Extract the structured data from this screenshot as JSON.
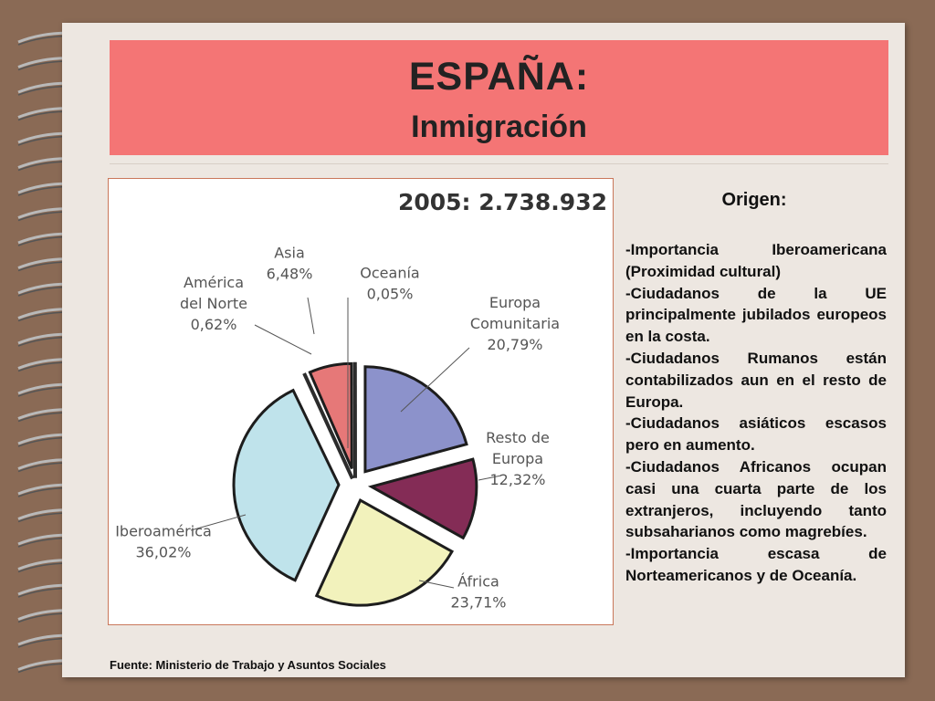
{
  "slide": {
    "title": "ESPAÑA:",
    "subtitle": "Inmigración",
    "source": "Fuente: Ministerio de Trabajo y Asuntos Sociales"
  },
  "origin": {
    "heading": "Origen:",
    "bullets": [
      "-Importancia Iberoamericana (Proximidad cultural)",
      "-Ciudadanos de la UE principalmente jubilados europeos en la costa.",
      "-Ciudadanos Rumanos están contabilizados aun en el resto de Europa.",
      "-Ciudadanos asiáticos escasos pero en aumento.",
      "-Ciudadanos Africanos ocupan casi una cuarta parte de los extranjeros, incluyendo tanto subsaharianos como magrebíes.",
      "-Importancia escasa de Norteamericanos y de Oceanía."
    ]
  },
  "chart_data": {
    "type": "pie",
    "title": "2005: 2.738.932",
    "legend": "none",
    "slices": [
      {
        "name": "Europa Comunitaria",
        "label_lines": [
          "Europa",
          "Comunitaria"
        ],
        "percent_label": "20,79%",
        "value": 20.79,
        "color": "#8c92cb",
        "exploded": true
      },
      {
        "name": "Resto de Europa",
        "label_lines": [
          "Resto de",
          "Europa"
        ],
        "percent_label": "12,32%",
        "value": 12.32,
        "color": "#842c56",
        "exploded": true
      },
      {
        "name": "África",
        "label_lines": [
          "África"
        ],
        "percent_label": "23,71%",
        "value": 23.71,
        "color": "#f2f2bc",
        "exploded": true
      },
      {
        "name": "Iberoamérica",
        "label_lines": [
          "Iberoamérica"
        ],
        "percent_label": "36,02%",
        "value": 36.02,
        "color": "#bfe3eb",
        "exploded": true
      },
      {
        "name": "América del Norte",
        "label_lines": [
          "América",
          "del Norte"
        ],
        "percent_label": "0,62%",
        "value": 0.62,
        "color": "#2c2c2c",
        "exploded": true
      },
      {
        "name": "Asia",
        "label_lines": [
          "Asia"
        ],
        "percent_label": "6,48%",
        "value": 6.48,
        "color": "#e67878",
        "exploded": true
      },
      {
        "name": "Oceanía",
        "label_lines": [
          "Oceanía"
        ],
        "percent_label": "0,05%",
        "value": 0.05,
        "color": "#2c2c2c",
        "exploded": true
      }
    ]
  }
}
